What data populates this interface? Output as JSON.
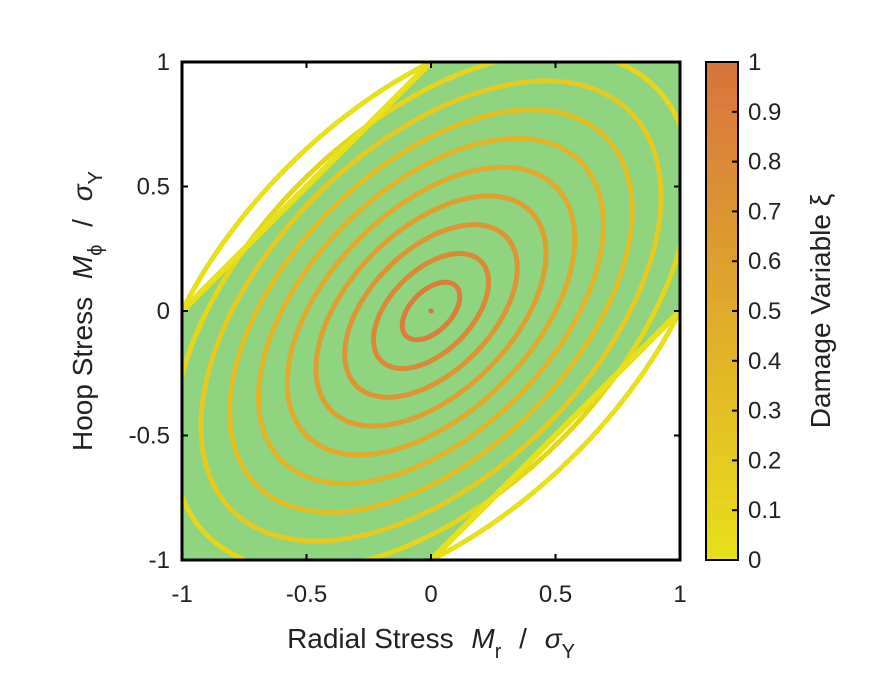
{
  "chart_data": {
    "type": "contour",
    "xlabel": {
      "prefix": "Radial Stress",
      "var": "M",
      "var_sub": "r",
      "sep": "/",
      "denom": "σ",
      "denom_sub": "Y"
    },
    "ylabel": {
      "prefix": "Hoop Stress",
      "var": "M",
      "var_sub": "ϕ",
      "sep": "/",
      "denom": "σ",
      "denom_sub": "Y"
    },
    "xlim": [
      -1,
      1
    ],
    "ylim": [
      -1,
      1
    ],
    "xticks": [
      "-1",
      "-0.5",
      "0",
      "0.5",
      "1"
    ],
    "yticks": [
      "-1",
      "-0.5",
      "0",
      "0.5",
      "1"
    ],
    "x_tick_values": [
      -1,
      -0.5,
      0,
      0.5,
      1
    ],
    "y_tick_values": [
      -1,
      -0.5,
      0,
      0.5,
      1
    ],
    "colorbar": {
      "label": "Damage Variable ξ",
      "range": [
        0,
        1
      ],
      "tick_values": [
        0,
        0.1,
        0.2,
        0.3,
        0.4,
        0.5,
        0.6,
        0.7,
        0.8,
        0.9,
        1
      ],
      "ticks": [
        "0",
        "0.1",
        "0.2",
        "0.3",
        "0.4",
        "0.5",
        "0.6",
        "0.7",
        "0.8",
        "0.9",
        "1"
      ],
      "color_low": "#e8e01a",
      "color_high": "#d8733c"
    },
    "region": {
      "description_rule": "|Mr - Mphi| <= 1",
      "fill_color": "#8fd47f"
    },
    "contour_levels": [
      0,
      0.1,
      0.2,
      0.3,
      0.4,
      0.5,
      0.6,
      0.7,
      0.8,
      0.9,
      1
    ],
    "grid": false,
    "legend": "none"
  }
}
